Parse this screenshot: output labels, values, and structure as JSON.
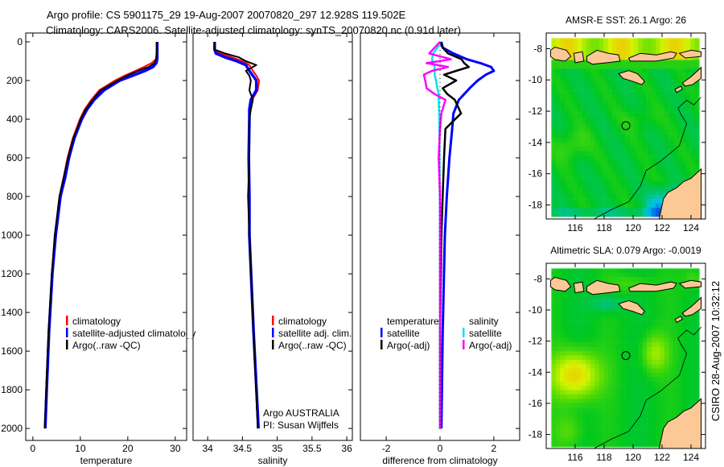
{
  "header": {
    "line1": "Argo profile: CS 5901175_29 19-Aug-2007 20070820_297 12.928S 119.502E",
    "line2": "Climatology: CARS2006. Satellite-adjusted climatology: synTS_20070820.nc (0.91d later)"
  },
  "credit": "CSIRO 28-Aug-2007 10:32:12",
  "colors": {
    "climatology": "#ff0000",
    "satellite": "#0000ff",
    "argo": "#000000",
    "salinity_satellite": "#00e5ee",
    "salinity_argo": "#ff00ff",
    "land": "#fcc895"
  },
  "chart_data": [
    {
      "type": "line",
      "name": "temperature-profile",
      "xlabel": "temperature",
      "ylabel": "",
      "xlim": [
        -1.5,
        32.4
      ],
      "ylim": [
        0,
        2062
      ],
      "y_reversed": true,
      "xticks": [
        0,
        10,
        20,
        30
      ],
      "yticks": [
        0,
        200,
        400,
        600,
        800,
        1000,
        1200,
        1400,
        1600,
        1800,
        2000
      ],
      "depth": [
        0,
        50,
        90,
        110,
        130,
        150,
        175,
        200,
        250,
        300,
        350,
        400,
        500,
        600,
        700,
        800,
        1000,
        1200,
        1500,
        1800,
        2000
      ],
      "series": [
        {
          "name": "climatology",
          "color": "#ff0000",
          "values": [
            26.1,
            26.1,
            25.9,
            25.0,
            23.4,
            21.6,
            19.3,
            17.3,
            14.0,
            12.3,
            10.9,
            9.9,
            8.4,
            7.3,
            6.5,
            5.6,
            4.7,
            4.0,
            3.3,
            2.8,
            2.5
          ]
        },
        {
          "name": "satellite-adjusted climatology",
          "color": "#0000ff",
          "values": [
            26.2,
            26.2,
            26.2,
            26.0,
            25.3,
            23.6,
            21.0,
            18.3,
            15.0,
            12.9,
            11.4,
            10.3,
            8.7,
            7.6,
            6.8,
            5.8,
            4.8,
            4.1,
            3.4,
            2.9,
            2.6
          ]
        },
        {
          "name": "Argo(..raw -QC)",
          "color": "#000000",
          "values": [
            26.1,
            26.1,
            26.0,
            25.6,
            24.4,
            22.2,
            19.8,
            17.9,
            14.3,
            12.6,
            11.1,
            10.1,
            8.5,
            7.4,
            6.5,
            5.6,
            4.6,
            4.0,
            3.3,
            2.8,
            2.5
          ]
        }
      ],
      "legend": [
        "climatology",
        "satellite-adjusted climatology",
        "Argo(..raw -QC)"
      ],
      "legend_position": "bottom-center"
    },
    {
      "type": "line",
      "name": "salinity-profile",
      "xlabel": "salinity",
      "xlim": [
        33.79,
        36.08
      ],
      "ylim": [
        0,
        2062
      ],
      "y_reversed": true,
      "xticks": [
        34,
        34.5,
        35,
        35.5,
        36
      ],
      "depth": [
        0,
        40,
        60,
        80,
        100,
        120,
        150,
        175,
        200,
        250,
        300,
        350,
        400,
        600,
        800,
        1000,
        1500,
        2000
      ],
      "series": [
        {
          "name": "climatology",
          "color": "#ff0000",
          "values": [
            34.1,
            34.1,
            34.18,
            34.35,
            34.5,
            34.6,
            34.65,
            34.7,
            34.74,
            34.72,
            34.64,
            34.61,
            34.6,
            34.6,
            34.6,
            34.6,
            34.66,
            34.72
          ]
        },
        {
          "name": "satellite adj. clim.",
          "color": "#0000ff",
          "values": [
            34.1,
            34.1,
            34.12,
            34.25,
            34.42,
            34.55,
            34.6,
            34.65,
            34.7,
            34.7,
            34.62,
            34.6,
            34.6,
            34.59,
            34.6,
            34.6,
            34.66,
            34.73
          ]
        },
        {
          "name": "Argo(..raw -QC)",
          "color": "#000000",
          "values": [
            34.1,
            34.1,
            34.25,
            34.45,
            34.55,
            34.7,
            34.55,
            34.6,
            34.62,
            34.6,
            34.65,
            34.62,
            34.6,
            34.6,
            34.58,
            34.6,
            34.66,
            34.72
          ]
        }
      ],
      "legend": [
        "climatology",
        "satellite adj. clim.",
        "Argo(..raw -QC)"
      ],
      "legend_position": "bottom-right",
      "annotation": [
        "Argo AUSTRALIA",
        "PI: Susan Wijffels"
      ]
    },
    {
      "type": "line",
      "name": "difference-profile",
      "xlabel": "difference from climatology",
      "xlim": [
        -2.96,
        2.96
      ],
      "ylim": [
        0,
        2062
      ],
      "y_reversed": true,
      "xticks": [
        -2,
        0,
        2
      ],
      "depth": [
        0,
        30,
        60,
        90,
        110,
        130,
        150,
        170,
        200,
        240,
        270,
        300,
        370,
        450,
        600,
        800,
        1000,
        1500,
        2000
      ],
      "series": [
        {
          "name": "temperature satellite",
          "color": "#0000ff",
          "values": [
            0.05,
            0.1,
            0.5,
            1.0,
            1.5,
            1.9,
            2.0,
            1.7,
            1.4,
            1.1,
            0.9,
            0.7,
            0.5,
            0.45,
            0.35,
            0.25,
            0.18,
            0.1,
            0.05
          ]
        },
        {
          "name": "temperature Argo(-adj)",
          "color": "#000000",
          "values": [
            0.0,
            0.1,
            0.3,
            0.8,
            0.9,
            1.07,
            0.6,
            0.15,
            0.6,
            0.1,
            0.27,
            0.55,
            0.78,
            0.2,
            0.15,
            0.1,
            0.05,
            0.0,
            0.0
          ]
        },
        {
          "name": "salinity satellite",
          "color": "#00e5ee",
          "values": [
            0.0,
            -0.1,
            -0.25,
            -0.3,
            -0.25,
            -0.2,
            -0.2,
            -0.2,
            -0.15,
            -0.1,
            -0.05,
            -0.05,
            -0.03,
            -0.02,
            -0.02,
            -0.01,
            0.0,
            0.0,
            0.0
          ]
        },
        {
          "name": "salinity Argo(-adj)",
          "color": "#ff00ff",
          "values": [
            0.0,
            -0.2,
            -0.4,
            0.4,
            -0.5,
            0.3,
            -0.3,
            -0.6,
            -0.55,
            -0.5,
            -0.2,
            0.2,
            0.05,
            0.0,
            -0.05,
            0.0,
            0.0,
            0.0,
            0.0
          ]
        }
      ],
      "legend_headers": [
        "temperature",
        "salinity"
      ],
      "legend": [
        "satellite",
        "Argo(-adj)",
        "satellite",
        "Argo(-adj)"
      ],
      "legend_position": "bottom-center"
    },
    {
      "type": "heatmap",
      "name": "sst-map",
      "title": "AMSR-E SST: 26.1 Argo: 26",
      "xlim": [
        114,
        125
      ],
      "ylim": [
        -18.9,
        -7
      ],
      "xticks": [
        116,
        118,
        120,
        122,
        124
      ],
      "yticks": [
        -8,
        -10,
        -12,
        -14,
        -16,
        -18
      ],
      "profile_location": [
        119.502,
        -12.928
      ]
    },
    {
      "type": "heatmap",
      "name": "sla-map",
      "title": "Altimetric SLA: 0.079 Argo: -0.0019",
      "xlim": [
        114,
        125
      ],
      "ylim": [
        -18.9,
        -7
      ],
      "xticks": [
        116,
        118,
        120,
        122,
        124
      ],
      "yticks": [
        -8,
        -10,
        -12,
        -14,
        -16,
        -18
      ],
      "profile_location": [
        119.502,
        -12.928
      ]
    }
  ]
}
